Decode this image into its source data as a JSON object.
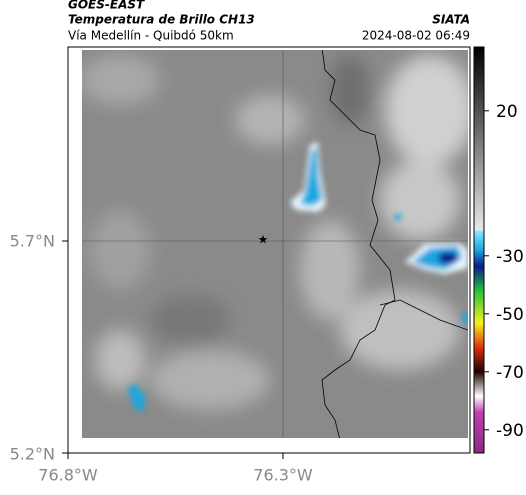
{
  "header": {
    "source": "GOES-EAST",
    "product": "Temperatura de Brillo CH13",
    "region": "Vía Medellín - Quibdó 50km",
    "agency": "SIATA",
    "datetime": "2024-08-02 06:49"
  },
  "map": {
    "lat_labels": [
      "5.7°N",
      "5.2°N"
    ],
    "lon_labels": [
      "76.8°W",
      "76.3°W"
    ]
  },
  "colorbar": {
    "clim": [
      -98,
      42
    ],
    "ticks": [
      20,
      -30,
      -50,
      -70,
      -90
    ]
  }
}
